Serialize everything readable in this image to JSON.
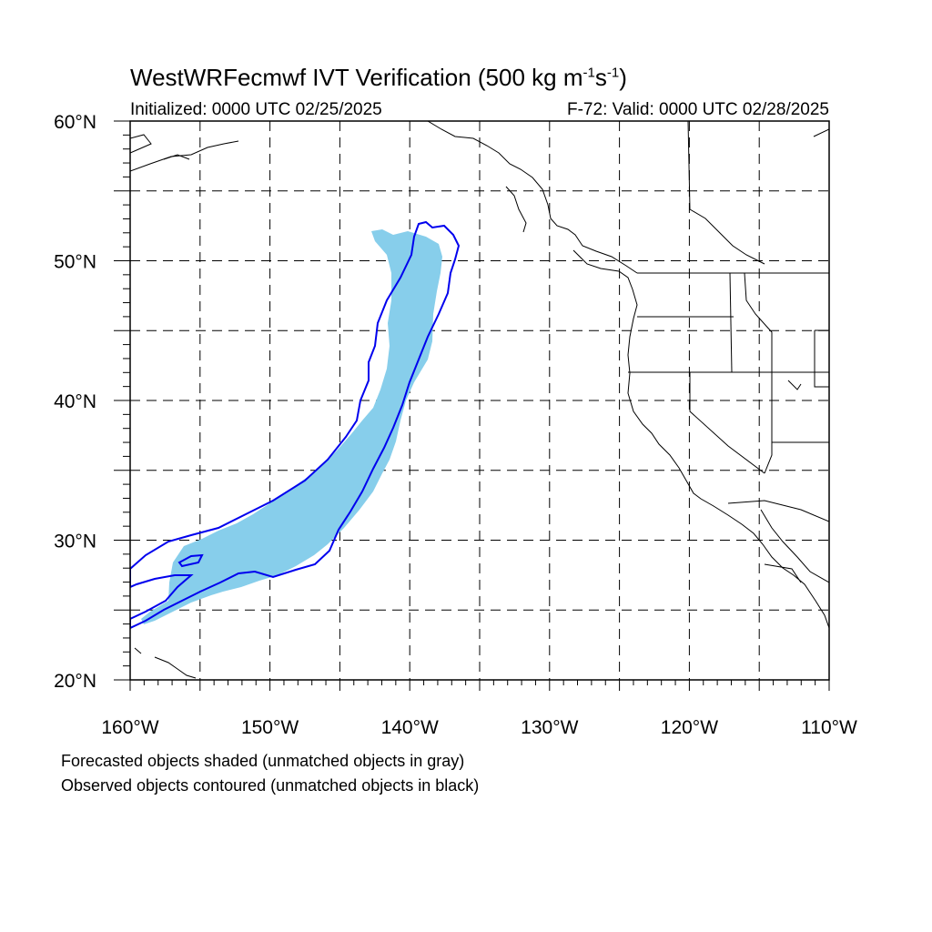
{
  "title": {
    "prefix": "WestWRFecmwf IVT Verification (500 kg m",
    "exp1": "-1",
    "middle": "s",
    "exp2": "-1",
    "suffix": ")"
  },
  "subtitle_left": "Initialized: 0000 UTC 02/25/2025",
  "subtitle_right": "F-72: Valid: 0000 UTC 02/28/2025",
  "footnotes": [
    "Forecasted objects shaded (unmatched objects in gray)",
    "Observed objects contoured (unmatched objects in black)"
  ],
  "axes": {
    "lon_range": [
      -160,
      -110
    ],
    "lat_range": [
      20,
      60
    ],
    "lon_labels": [
      "160°W",
      "150°W",
      "140°W",
      "130°W",
      "120°W",
      "110°W"
    ],
    "lat_labels": [
      "20°N",
      "30°N",
      "40°N",
      "50°N",
      "60°N"
    ]
  },
  "colors": {
    "forecast_fill": "#87ceeb",
    "observed_contour": "#0000ee",
    "coastline": "#000000"
  }
}
